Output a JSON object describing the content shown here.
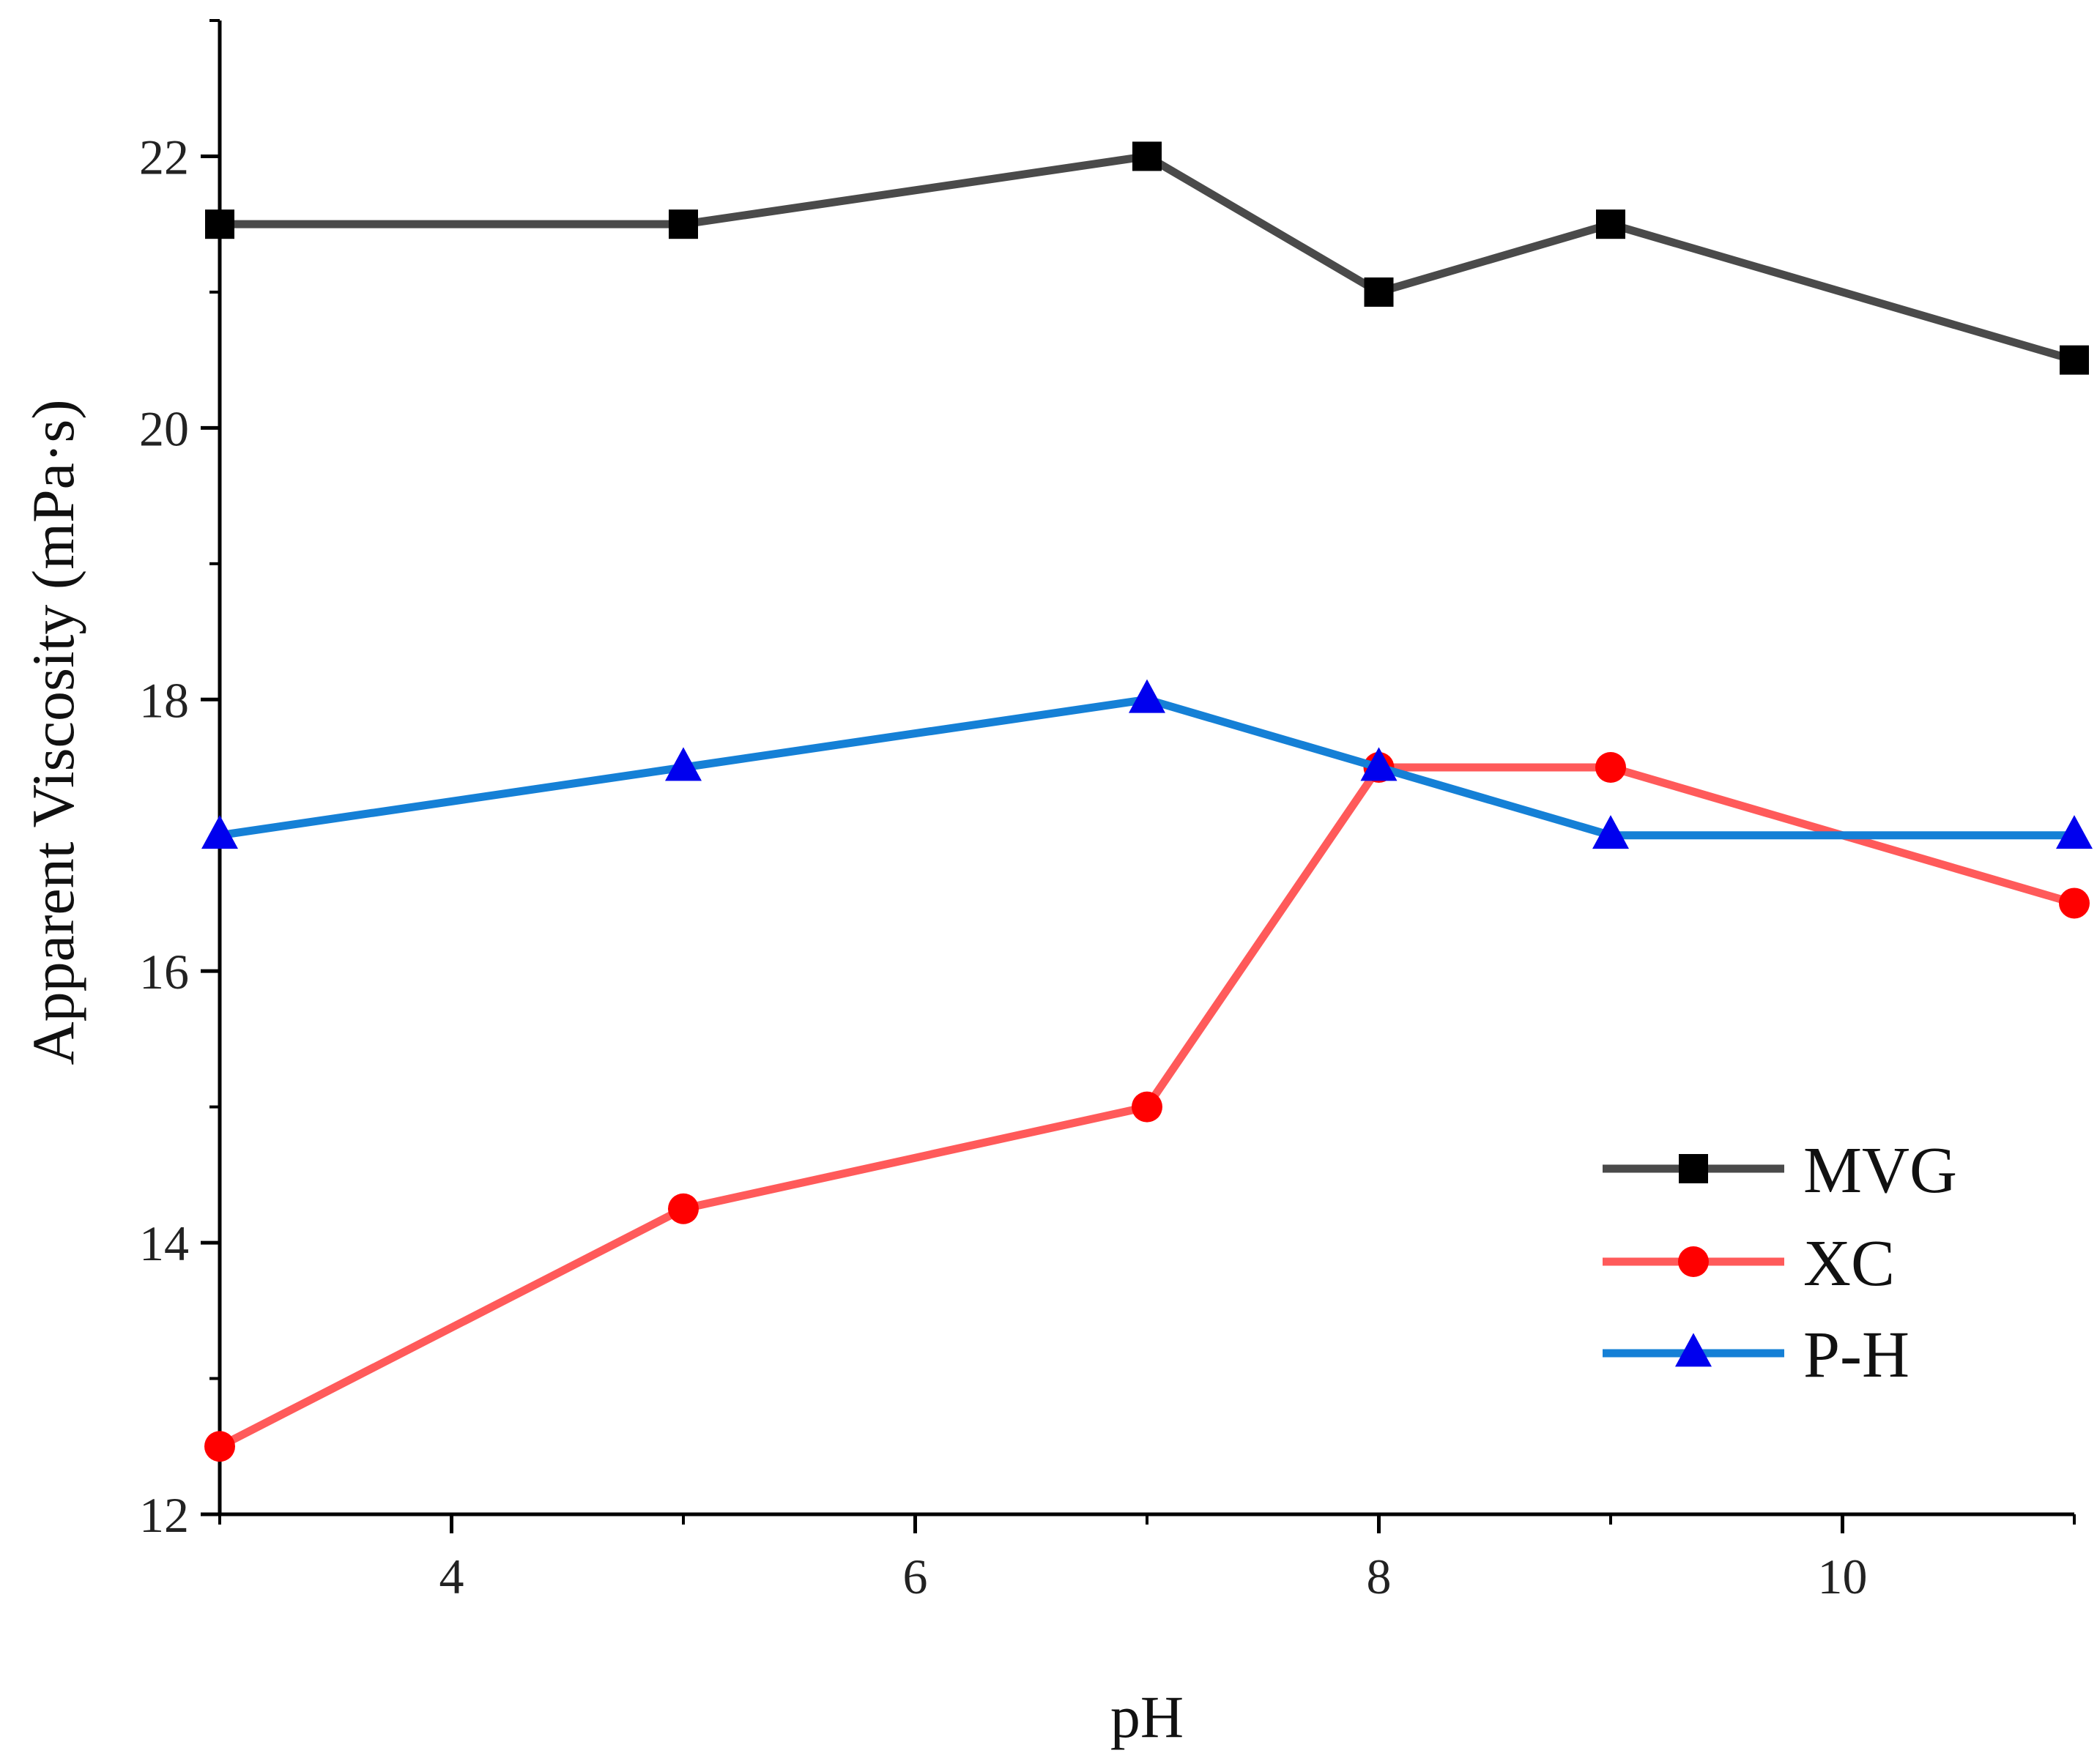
{
  "chart_data": {
    "type": "line",
    "title": "",
    "xlabel": "pH",
    "ylabel": "Apparent Viscosity (mPa·s)",
    "xlim": [
      3,
      11
    ],
    "ylim": [
      12,
      23
    ],
    "xticks": [
      4,
      6,
      8,
      10
    ],
    "yticks": [
      12,
      14,
      16,
      18,
      20,
      22
    ],
    "grid": false,
    "legend_position": "bottom-right",
    "x": [
      3,
      5,
      7,
      8,
      9,
      11
    ],
    "series": [
      {
        "name": "MVG",
        "color": "#4a4a4a",
        "marker": "square",
        "markerColor": "#000000",
        "values": [
          21.5,
          21.5,
          22.0,
          21.0,
          21.5,
          20.5
        ]
      },
      {
        "name": "XC",
        "color": "#ff5a5a",
        "marker": "circle",
        "markerColor": "#ff0000",
        "values": [
          12.5,
          14.25,
          15.0,
          17.5,
          17.5,
          16.5
        ]
      },
      {
        "name": "P-H",
        "color": "#1580d6",
        "marker": "triangle",
        "markerColor": "#0000ee",
        "values": [
          17.0,
          17.5,
          18.0,
          17.5,
          17.0,
          17.0
        ]
      }
    ]
  }
}
